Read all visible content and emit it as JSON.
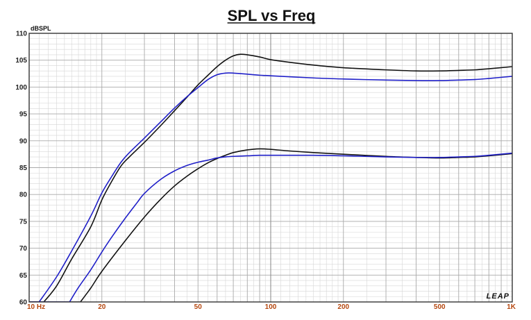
{
  "chart_data": {
    "type": "line",
    "title": "SPL vs Freq",
    "ylabel": "dBSPL",
    "xlabel": "",
    "xscale": "log",
    "xlim": [
      10,
      1000
    ],
    "ylim": [
      60,
      110
    ],
    "grid": true,
    "x_tick_values": [
      10,
      20,
      50,
      100,
      200,
      500,
      1000
    ],
    "x_tick_labels": [
      "10  Hz",
      "20",
      "50",
      "100",
      "200",
      "500",
      "1K"
    ],
    "y_ticks": [
      60,
      65,
      70,
      75,
      80,
      85,
      90,
      95,
      100,
      105,
      110
    ],
    "logo": "LEAP",
    "series": [
      {
        "color": "#111111",
        "x": [
          11.5,
          13,
          15,
          18,
          20,
          22,
          24,
          26,
          30,
          35,
          40,
          45,
          50,
          55,
          60,
          65,
          70,
          75,
          80,
          90,
          100,
          120,
          150,
          200,
          300,
          400,
          500,
          600,
          700,
          800,
          1000
        ],
        "y": [
          60,
          63,
          68,
          74,
          79,
          82.5,
          85.3,
          87,
          89.7,
          92.8,
          95.6,
          98.1,
          100.4,
          102.2,
          103.8,
          105,
          105.8,
          106.1,
          106,
          105.6,
          105.1,
          104.6,
          104.1,
          103.6,
          103.2,
          103,
          103,
          103.1,
          103.2,
          103.4,
          103.8
        ]
      },
      {
        "color": "#1f1fc8",
        "x": [
          11,
          13,
          15,
          18,
          20,
          22,
          24,
          26,
          30,
          35,
          40,
          45,
          50,
          55,
          60,
          65,
          70,
          75,
          80,
          90,
          100,
          150,
          200,
          300,
          400,
          500,
          600,
          700,
          800,
          1000
        ],
        "y": [
          60,
          64.7,
          69.5,
          76,
          80.3,
          83.4,
          86,
          87.8,
          90.5,
          93.5,
          96.1,
          98.2,
          99.9,
          101.4,
          102.3,
          102.6,
          102.6,
          102.5,
          102.4,
          102.2,
          102.1,
          101.7,
          101.5,
          101.3,
          101.2,
          101.2,
          101.3,
          101.4,
          101.6,
          102
        ]
      },
      {
        "color": "#111111",
        "x": [
          16.3,
          18,
          20,
          25,
          30,
          35,
          40,
          45,
          50,
          55,
          60,
          65,
          70,
          80,
          90,
          100,
          120,
          150,
          200,
          300,
          400,
          500,
          600,
          700,
          800,
          1000
        ],
        "y": [
          60,
          62.6,
          65.7,
          71.4,
          75.8,
          79.1,
          81.6,
          83.4,
          84.8,
          85.9,
          86.7,
          87.3,
          87.8,
          88.3,
          88.5,
          88.4,
          88.1,
          87.8,
          87.5,
          87.1,
          86.9,
          86.8,
          86.9,
          87,
          87.2,
          87.6
        ]
      },
      {
        "color": "#1f1fc8",
        "x": [
          14.7,
          16,
          18,
          20,
          22,
          25,
          28,
          30,
          35,
          40,
          45,
          50,
          55,
          60,
          65,
          70,
          80,
          90,
          100,
          150,
          200,
          300,
          400,
          500,
          600,
          700,
          800,
          1000
        ],
        "y": [
          60,
          62.7,
          66,
          69.3,
          72.1,
          75.6,
          78.5,
          80.2,
          82.8,
          84.4,
          85.4,
          86,
          86.4,
          86.8,
          87,
          87.1,
          87.2,
          87.3,
          87.3,
          87.3,
          87.2,
          87,
          86.9,
          86.9,
          87,
          87.1,
          87.3,
          87.7
        ]
      }
    ]
  }
}
